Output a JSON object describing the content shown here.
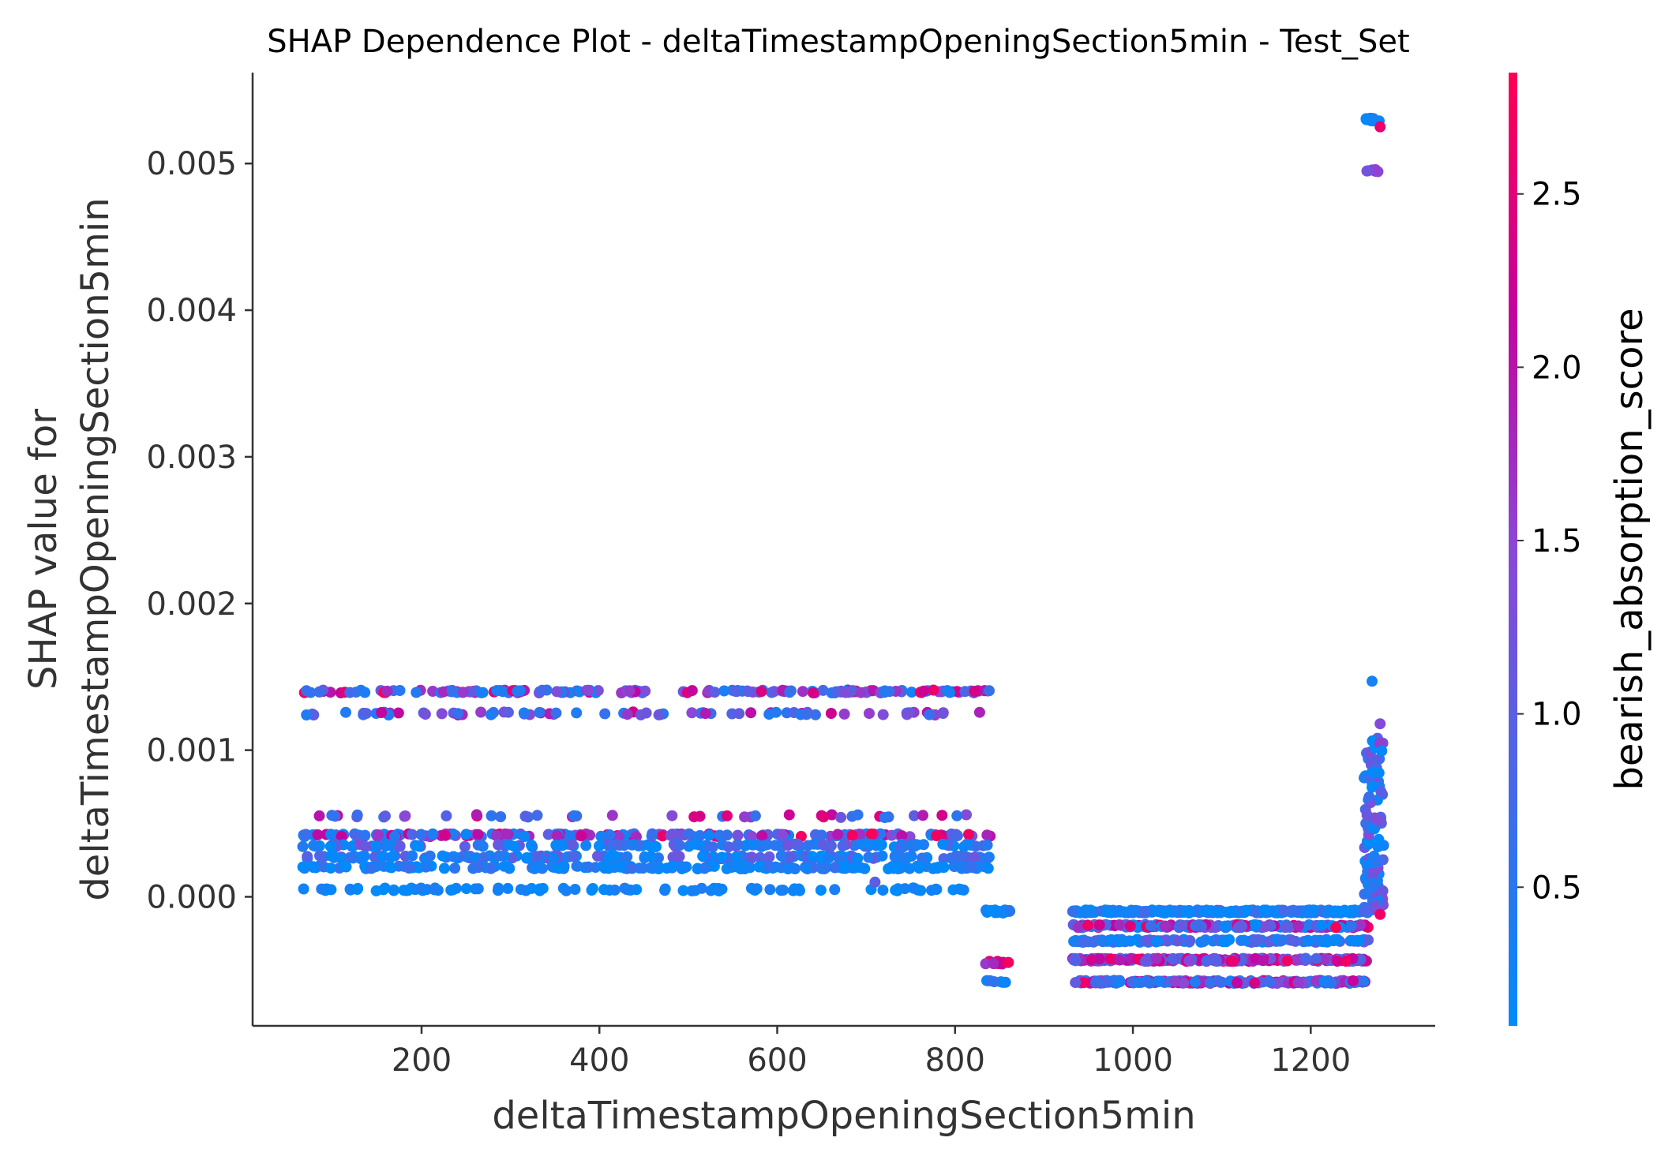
{
  "chart_data": {
    "type": "scatter",
    "title": "SHAP Dependence Plot - deltaTimestampOpeningSection5min - Test_Set",
    "xlabel": "deltaTimestampOpeningSection5min",
    "ylabel_lines": [
      "SHAP value for",
      "deltaTimestampOpeningSection5min"
    ],
    "xlim": [
      10,
      1340
    ],
    "ylim": [
      -0.00088,
      0.00562
    ],
    "x_ticks": [
      200,
      400,
      600,
      800,
      1000,
      1200
    ],
    "x_tick_labels": [
      "200",
      "400",
      "600",
      "800",
      "1000",
      "1200"
    ],
    "y_ticks": [
      0.0,
      0.001,
      0.002,
      0.003,
      0.004,
      0.005
    ],
    "y_tick_labels": [
      "0.000",
      "0.001",
      "0.002",
      "0.003",
      "0.004",
      "0.005"
    ],
    "grid": false,
    "colorbar": {
      "label": "bearish_absorption_score",
      "range": [
        0.1,
        2.85
      ],
      "ticks": [
        0.5,
        1.0,
        1.5,
        2.0,
        2.5
      ],
      "tick_labels": [
        "0.5",
        "1.0",
        "1.5",
        "2.0",
        "2.5"
      ],
      "low_color": "#008bfb",
      "high_color": "#ff0052"
    },
    "clusters": [
      {
        "x": [
          65,
          840
        ],
        "y": 0.0014,
        "color_values": [
          0.3,
          2.8
        ],
        "count": 190
      },
      {
        "x": [
          70,
          835
        ],
        "y": 0.00125,
        "color_values": [
          0.4,
          2.4
        ],
        "count": 80
      },
      {
        "x": [
          70,
          835
        ],
        "y": 0.00055,
        "color_values": [
          0.5,
          2.6
        ],
        "count": 45
      },
      {
        "x": [
          65,
          840
        ],
        "y": 0.00042,
        "color_values": [
          0.2,
          2.8
        ],
        "count": 200
      },
      {
        "x": [
          65,
          840
        ],
        "y": 0.00035,
        "color_values": [
          0.1,
          1.4
        ],
        "count": 150
      },
      {
        "x": [
          65,
          840
        ],
        "y": 0.00027,
        "color_values": [
          0.1,
          1.2
        ],
        "count": 170
      },
      {
        "x": [
          65,
          840
        ],
        "y": 0.0002,
        "color_values": [
          0.1,
          0.7
        ],
        "count": 200
      },
      {
        "x": [
          65,
          840
        ],
        "y": 5e-05,
        "color_values": [
          0.1,
          0.4
        ],
        "count": 100
      },
      {
        "x": [
          832,
          862
        ],
        "y": -0.0001,
        "color_values": [
          0.1,
          0.6
        ],
        "count": 24
      },
      {
        "x": [
          832,
          862
        ],
        "y": -0.00045,
        "color_values": [
          1.6,
          2.8
        ],
        "count": 12
      },
      {
        "x": [
          832,
          862
        ],
        "y": -0.00058,
        "color_values": [
          0.2,
          0.6
        ],
        "count": 8
      },
      {
        "x": [
          932,
          1265
        ],
        "y": -0.0001,
        "color_values": [
          0.1,
          0.8
        ],
        "count": 260
      },
      {
        "x": [
          932,
          1265
        ],
        "y": -0.0002,
        "color_values": [
          0.1,
          2.8
        ],
        "count": 200
      },
      {
        "x": [
          932,
          1265
        ],
        "y": -0.0003,
        "color_values": [
          0.1,
          1.2
        ],
        "count": 150
      },
      {
        "x": [
          932,
          1265
        ],
        "y": -0.00043,
        "color_values": [
          0.8,
          2.8
        ],
        "count": 220
      },
      {
        "x": [
          932,
          1265
        ],
        "y": -0.00058,
        "color_values": [
          0.3,
          2.7
        ],
        "count": 200
      },
      {
        "x": [
          1260,
          1282
        ],
        "y": [
          -0.0001,
          0.0011
        ],
        "color_values": [
          0.1,
          1.6
        ],
        "count": 120
      },
      {
        "x": [
          1262,
          1278
        ],
        "y": 0.0053,
        "color_values": [
          0.1,
          0.4
        ],
        "count": 14
      },
      {
        "x": [
          1262,
          1278
        ],
        "y": 0.00495,
        "color_values": [
          1.2,
          1.8
        ],
        "count": 6
      }
    ],
    "points": [
      {
        "x": 1269,
        "y": 0.00147,
        "c": 0.3
      },
      {
        "x": 1278,
        "y": 0.00118,
        "c": 1.4
      },
      {
        "x": 1278,
        "y": 0.00525,
        "c": 2.6
      },
      {
        "x": 1278,
        "y": -0.00012,
        "c": 2.7
      },
      {
        "x": 710,
        "y": 0.0001,
        "c": 1.0
      }
    ]
  }
}
